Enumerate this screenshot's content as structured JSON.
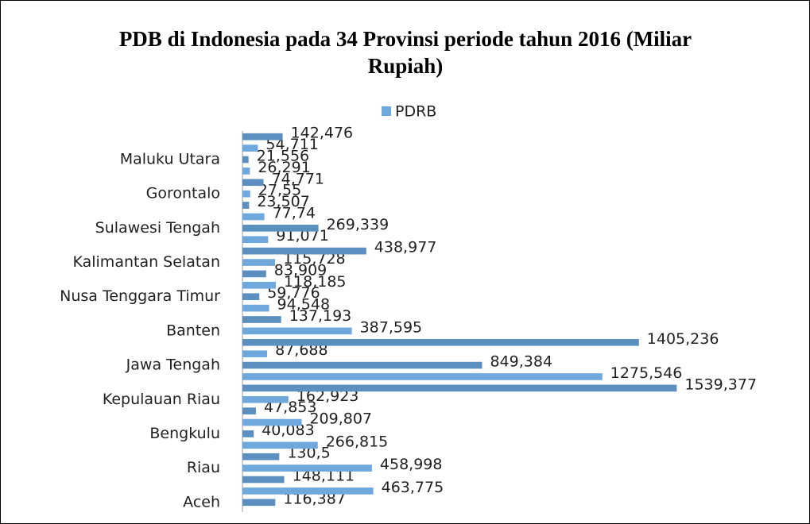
{
  "chart_data": {
    "type": "bar",
    "orientation": "horizontal",
    "title": "PDB di Indonesia pada 34 Provinsi periode tahun 2016  (Miliar Rupiah)",
    "categories": [
      "Aceh",
      null,
      null,
      "Riau",
      null,
      null,
      "Bengkulu",
      null,
      null,
      "Kepulauan Riau",
      null,
      null,
      "Jawa Tengah",
      null,
      null,
      "Banten",
      null,
      null,
      "Nusa Tenggara Timur",
      null,
      null,
      "Kalimantan Selatan",
      null,
      null,
      "Sulawesi Tengah",
      null,
      null,
      "Gorontalo",
      null,
      null,
      "Maluku Utara",
      null,
      null
    ],
    "series": [
      {
        "name": "PDRB",
        "color": "#6fa8dc",
        "values": [
          116.387,
          463.775,
          148.111,
          458.998,
          130.5,
          266.815,
          40.083,
          209.807,
          47.853,
          162.923,
          1539.377,
          1275.546,
          849.384,
          87.688,
          1405.236,
          387.595,
          137.193,
          94.548,
          59.776,
          118.185,
          83.909,
          115.728,
          438.977,
          91.071,
          269.339,
          77.74,
          23.507,
          27.55,
          74.771,
          26.291,
          21.556,
          54.711,
          142.476
        ],
        "value_labels": [
          "116,387",
          "463,775",
          "148,111",
          "458,998",
          "130,5",
          "266,815",
          "40,083",
          "209,807",
          "47,853",
          "162,923",
          "1539,377",
          "1275,546",
          "849,384",
          "87,688",
          "1405,236",
          "387,595",
          "137,193",
          "94,548",
          "59,776",
          "118,185",
          "83,909",
          "115,728",
          "438,977",
          "91,071",
          "269,339",
          "77,74",
          "23,507",
          "27,55",
          "74,771",
          "26,291",
          "21,556",
          "54,711",
          "142,476"
        ]
      }
    ],
    "xlim": [
      0,
      1620
    ],
    "legend": "top"
  }
}
